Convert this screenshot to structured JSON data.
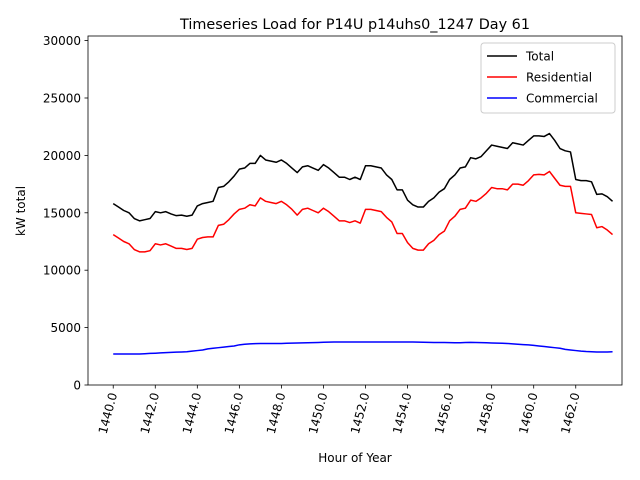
{
  "chart_data": {
    "type": "line",
    "title": "Timeseries Load for P14U p14uhs0_1247  Day 61",
    "xlabel": "Hour of Year",
    "ylabel": "kW total",
    "xlim": [
      1438.8,
      1464.2
    ],
    "ylim": [
      0,
      30400
    ],
    "xticks": [
      1440,
      1442,
      1444,
      1446,
      1448,
      1450,
      1452,
      1454,
      1456,
      1458,
      1460,
      1462
    ],
    "xtick_labels": [
      "1440.0",
      "1442.0",
      "1444.0",
      "1446.0",
      "1448.0",
      "1450.0",
      "1452.0",
      "1454.0",
      "1456.0",
      "1458.0",
      "1460.0",
      "1462.0"
    ],
    "yticks": [
      0,
      5000,
      10000,
      15000,
      20000,
      25000,
      30000
    ],
    "ytick_labels": [
      "0",
      "5000",
      "10000",
      "15000",
      "20000",
      "25000",
      "30000"
    ],
    "legend_position": "top-right",
    "x_start": 1440,
    "x_step": 0.25,
    "series": [
      {
        "name": "Total",
        "color": "#000000",
        "values": [
          15800,
          15500,
          15200,
          15000,
          14500,
          14300,
          14400,
          14500,
          15100,
          15000,
          15100,
          14900,
          14750,
          14800,
          14700,
          14800,
          15600,
          15800,
          15900,
          16000,
          17200,
          17300,
          17700,
          18200,
          18800,
          18900,
          19300,
          19300,
          20000,
          19600,
          19500,
          19400,
          19600,
          19300,
          18900,
          18500,
          19000,
          19100,
          18900,
          18700,
          19200,
          18900,
          18500,
          18100,
          18100,
          17900,
          18100,
          17900,
          19100,
          19100,
          19000,
          18900,
          18300,
          17900,
          17000,
          17000,
          16100,
          15700,
          15500,
          15500,
          16000,
          16300,
          16800,
          17100,
          17900,
          18300,
          18900,
          19000,
          19800,
          19700,
          19900,
          20400,
          20900,
          20800,
          20700,
          20600,
          21100,
          21000,
          20900,
          21300,
          21700,
          21700,
          21650,
          21900,
          21300,
          20600,
          20400,
          20300,
          17900,
          17800,
          17800,
          17700,
          16600,
          16650,
          16400,
          16000
        ]
      },
      {
        "name": "Residential",
        "color": "#ff0000",
        "values": [
          13100,
          12800,
          12500,
          12300,
          11800,
          11600,
          11600,
          11700,
          12300,
          12200,
          12300,
          12100,
          11900,
          11900,
          11800,
          11900,
          12700,
          12850,
          12900,
          12900,
          13900,
          14000,
          14400,
          14900,
          15300,
          15400,
          15700,
          15600,
          16300,
          16000,
          15900,
          15800,
          16000,
          15700,
          15300,
          14800,
          15300,
          15400,
          15200,
          15000,
          15400,
          15100,
          14700,
          14300,
          14300,
          14150,
          14300,
          14100,
          15300,
          15300,
          15200,
          15100,
          14600,
          14200,
          13200,
          13200,
          12400,
          11900,
          11750,
          11750,
          12300,
          12600,
          13100,
          13400,
          14300,
          14700,
          15300,
          15400,
          16100,
          16000,
          16300,
          16700,
          17200,
          17100,
          17100,
          17000,
          17500,
          17500,
          17400,
          17800,
          18300,
          18350,
          18300,
          18600,
          18000,
          17400,
          17300,
          17300,
          15000,
          14950,
          14900,
          14850,
          13700,
          13800,
          13500,
          13100
        ]
      },
      {
        "name": "Commercial",
        "color": "#0000ff",
        "values": [
          2700,
          2700,
          2700,
          2700,
          2700,
          2700,
          2720,
          2750,
          2770,
          2800,
          2820,
          2840,
          2860,
          2880,
          2900,
          2950,
          3000,
          3050,
          3150,
          3200,
          3250,
          3300,
          3350,
          3400,
          3500,
          3550,
          3580,
          3600,
          3620,
          3620,
          3620,
          3620,
          3620,
          3640,
          3650,
          3660,
          3670,
          3680,
          3690,
          3700,
          3720,
          3730,
          3740,
          3750,
          3750,
          3750,
          3750,
          3750,
          3750,
          3750,
          3750,
          3750,
          3750,
          3750,
          3750,
          3750,
          3750,
          3740,
          3730,
          3720,
          3710,
          3700,
          3700,
          3700,
          3690,
          3680,
          3680,
          3700,
          3710,
          3700,
          3690,
          3680,
          3660,
          3650,
          3640,
          3620,
          3580,
          3550,
          3520,
          3500,
          3450,
          3400,
          3350,
          3300,
          3250,
          3200,
          3100,
          3050,
          3000,
          2950,
          2920,
          2900,
          2880,
          2870,
          2880,
          2900
        ]
      }
    ]
  }
}
